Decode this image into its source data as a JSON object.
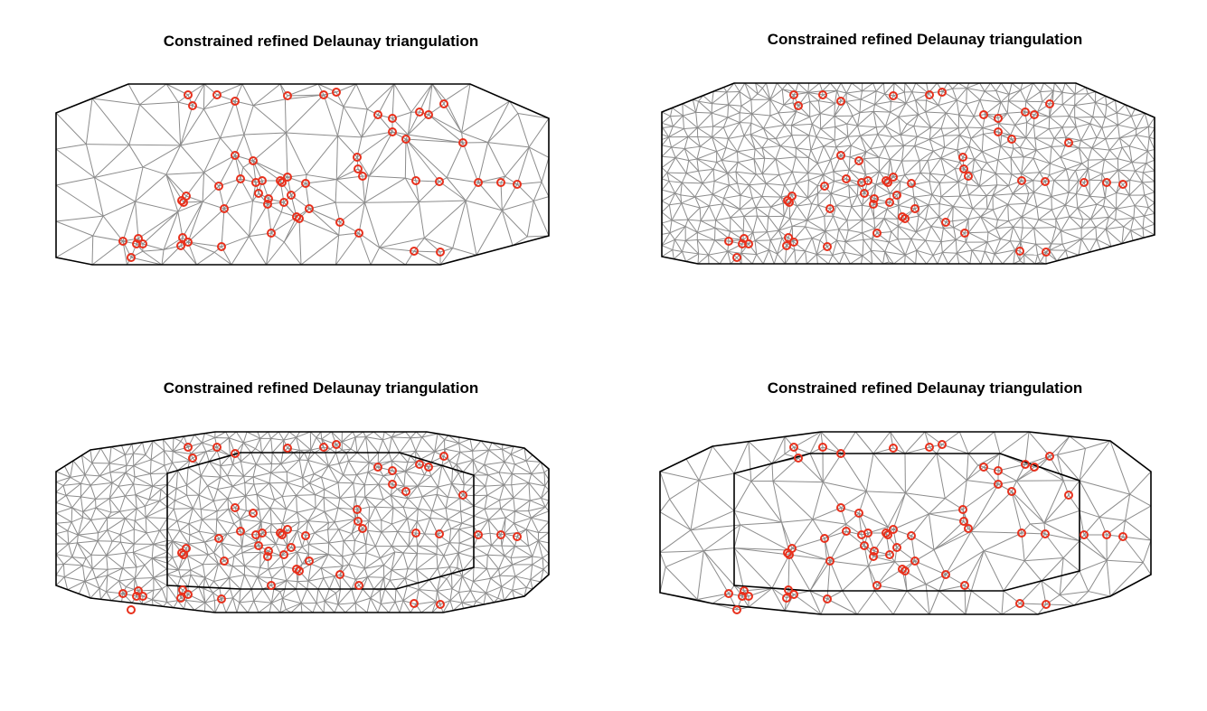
{
  "figure": {
    "panels": [
      {
        "title": "Constrained refined Delaunay triangulation",
        "mesh": "coarse",
        "boundary": "outer-only"
      },
      {
        "title": "Constrained refined Delaunay triangulation",
        "mesh": "fine",
        "boundary": "outer-only"
      },
      {
        "title": "Constrained refined Delaunay triangulation",
        "mesh": "fine",
        "boundary": "outer-and-inner"
      },
      {
        "title": "Constrained refined Delaunay triangulation",
        "mesh": "coarse",
        "boundary": "outer-and-inner"
      }
    ],
    "colors": {
      "mesh_edge": "#8c8c8c",
      "boundary": "#000000",
      "points": "#e8301c"
    }
  }
}
